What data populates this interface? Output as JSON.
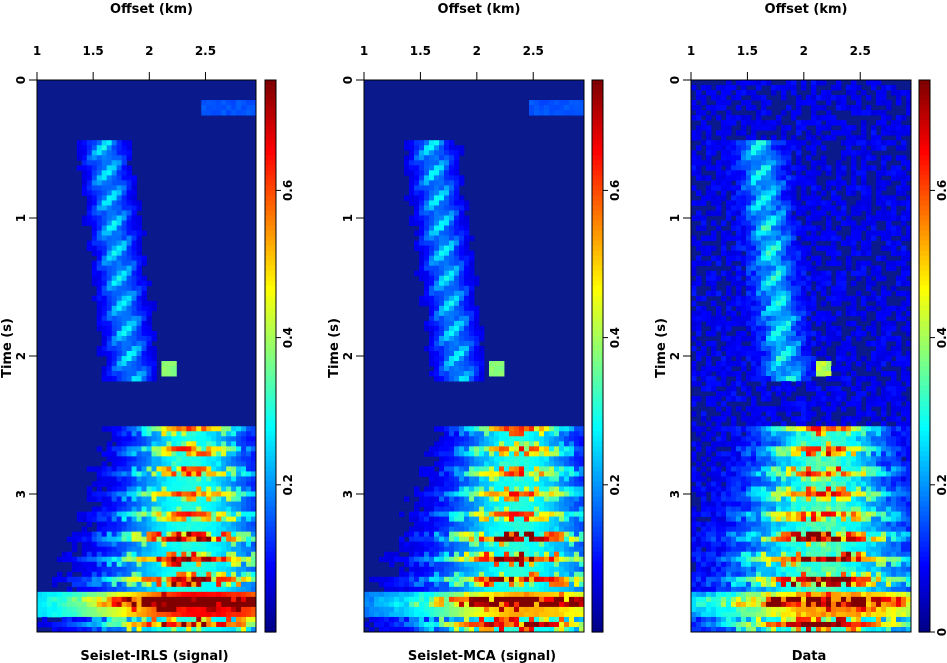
{
  "chart_data": [
    {
      "type": "heatmap",
      "title": "Seislet-IRLS (signal)",
      "xlabel": "Offset (km)",
      "ylabel": "Time (s)",
      "xlim": [
        1,
        2.95
      ],
      "ylim": [
        0,
        4.0
      ],
      "xticks": [
        "1",
        "1.5",
        "2",
        "2.5"
      ],
      "yticks": [
        "0",
        "1",
        "2",
        "3"
      ],
      "colorbar": {
        "range": [
          0,
          0.75
        ],
        "ticks": [
          "0.2",
          "0.4",
          "0.6"
        ]
      },
      "colormap": "jet",
      "y_axis": "inverted",
      "notes_for_render": "amplitude energy concentrated near (1.5,0.5)-(2,1.5) and strong (2.2-2.7, 2.5-3.9)"
    },
    {
      "type": "heatmap",
      "title": "Seislet-MCA (signal)",
      "xlabel": "Offset (km)",
      "ylabel": "Time (s)",
      "xlim": [
        1,
        2.95
      ],
      "ylim": [
        0,
        4.0
      ],
      "xticks": [
        "1",
        "1.5",
        "2",
        "2.5"
      ],
      "yticks": [
        "0",
        "1",
        "2",
        "3"
      ],
      "colorbar": {
        "range": [
          0,
          0.75
        ],
        "ticks": [
          "0.2",
          "0.4",
          "0.6"
        ]
      },
      "colormap": "jet",
      "y_axis": "inverted"
    },
    {
      "type": "heatmap",
      "title": "Data",
      "xlabel": "Offset (km)",
      "ylabel": "Time (s)",
      "xlim": [
        1,
        2.95
      ],
      "ylim": [
        0,
        4.0
      ],
      "xticks": [
        "1",
        "1.5",
        "2",
        "2.5"
      ],
      "yticks": [
        "0",
        "1",
        "2",
        "3"
      ],
      "colorbar": {
        "range": [
          0,
          0.75
        ],
        "ticks": [
          "0",
          "0.2",
          "0.4",
          "0.6"
        ]
      },
      "colormap": "jet",
      "y_axis": "inverted"
    }
  ],
  "colors": {
    "background_field": "#0a1a8c",
    "jet_low": "#00008f",
    "jet_high": "#800000"
  }
}
